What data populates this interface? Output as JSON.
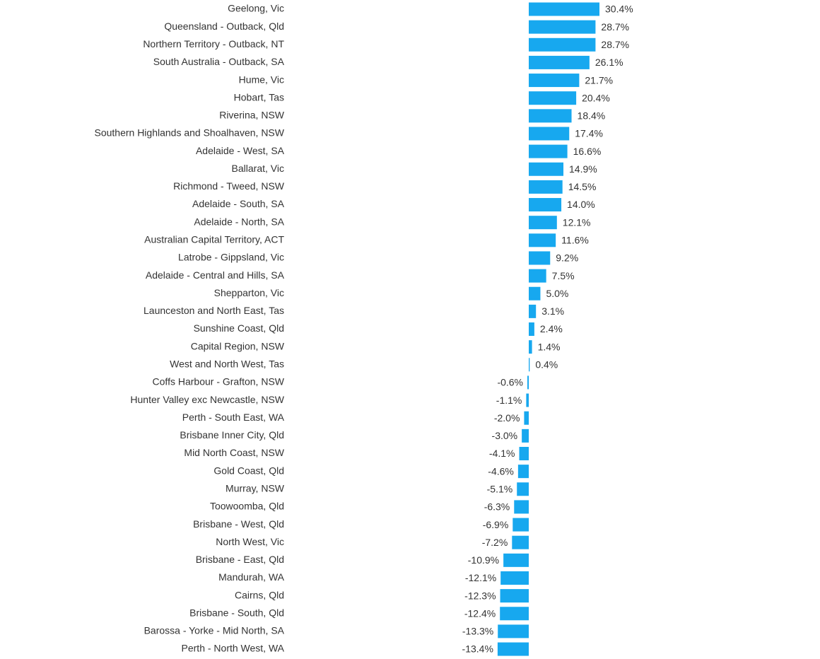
{
  "chart_data": {
    "type": "bar",
    "orientation": "horizontal",
    "color": "#17a8ef",
    "categories": [
      "Geelong, Vic",
      "Queensland - Outback, Qld",
      "Northern Territory - Outback, NT",
      "South Australia - Outback, SA",
      "Hume, Vic",
      "Hobart, Tas",
      "Riverina, NSW",
      "Southern Highlands and Shoalhaven, NSW",
      "Adelaide - West, SA",
      "Ballarat, Vic",
      "Richmond - Tweed, NSW",
      "Adelaide - South, SA",
      "Adelaide - North, SA",
      "Australian Capital Territory, ACT",
      "Latrobe - Gippsland, Vic",
      "Adelaide - Central and Hills, SA",
      "Shepparton, Vic",
      "Launceston and North East, Tas",
      "Sunshine Coast, Qld",
      "Capital Region, NSW",
      "West and North West, Tas",
      "Coffs Harbour - Grafton, NSW",
      "Hunter Valley exc Newcastle, NSW",
      "Perth - South East, WA",
      "Brisbane Inner City, Qld",
      "Mid North Coast, NSW",
      "Gold Coast, Qld",
      "Murray, NSW",
      "Toowoomba, Qld",
      "Brisbane - West, Qld",
      "North West, Vic",
      "Brisbane - East, Qld",
      "Mandurah, WA",
      "Cairns, Qld",
      "Brisbane - South, Qld",
      "Barossa - Yorke - Mid North, SA",
      "Perth - North West, WA"
    ],
    "values": [
      30.4,
      28.7,
      28.7,
      26.1,
      21.7,
      20.4,
      18.4,
      17.4,
      16.6,
      14.9,
      14.5,
      14.0,
      12.1,
      11.6,
      9.2,
      7.5,
      5.0,
      3.1,
      2.4,
      1.4,
      0.4,
      -0.6,
      -1.1,
      -2.0,
      -3.0,
      -4.1,
      -4.6,
      -5.1,
      -6.3,
      -6.9,
      -7.2,
      -10.9,
      -12.1,
      -12.3,
      -12.4,
      -13.3,
      -13.4
    ],
    "value_labels": [
      "30.4%",
      "28.7%",
      "28.7%",
      "26.1%",
      "21.7%",
      "20.4%",
      "18.4%",
      "17.4%",
      "16.6%",
      "14.9%",
      "14.5%",
      "14.0%",
      "12.1%",
      "11.6%",
      "9.2%",
      "7.5%",
      "5.0%",
      "3.1%",
      "2.4%",
      "1.4%",
      "0.4%",
      "-0.6%",
      "-1.1%",
      "-2.0%",
      "-3.0%",
      "-4.1%",
      "-4.6%",
      "-5.1%",
      "-6.3%",
      "-6.9%",
      "-7.2%",
      "-10.9%",
      "-12.1%",
      "-12.3%",
      "-12.4%",
      "-13.3%",
      "-13.4%"
    ]
  }
}
